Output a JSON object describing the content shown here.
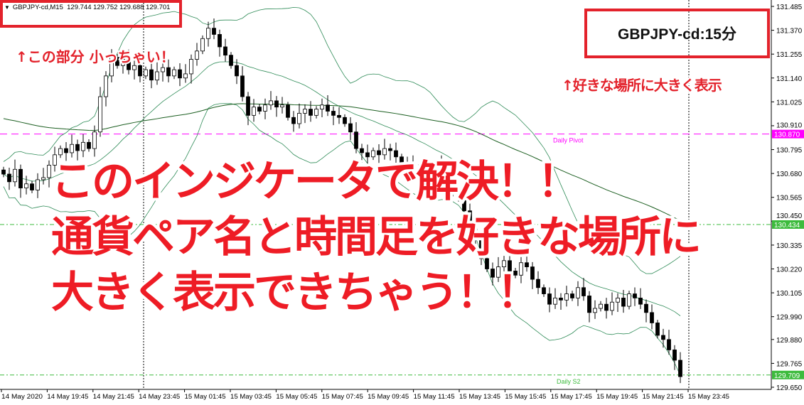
{
  "header": {
    "symbol": "GBPJPY-cd,M15",
    "ohlc": "129.744 129.752 129.688 129.701"
  },
  "symbol_label": "GBPJPY-cd:15分",
  "annotations": {
    "small_note": "↑この部分 小っちゃい！",
    "place_note": "↑好きな場所に大きく表示",
    "headline": [
      "このインジケータで解決！！",
      "通貨ペア名と時間足を好きな場所に",
      "大きく表示できちゃう！！"
    ]
  },
  "colors": {
    "accent_red": "#e3222b",
    "pivot": "#ff00ff",
    "support": "#3dbb3d",
    "band": "#2e8b57",
    "ma": "#1b5e20"
  },
  "chart_data": {
    "type": "candlestick",
    "title": "GBPJPY-cd,M15",
    "ylim": [
      129.65,
      131.485
    ],
    "y_ticks": [
      "131.485",
      "131.370",
      "131.255",
      "131.140",
      "131.025",
      "130.910",
      "130.795",
      "130.680",
      "130.565",
      "130.450",
      "130.335",
      "130.220",
      "130.105",
      "129.990",
      "129.880",
      "129.765",
      "129.650"
    ],
    "x_ticks": [
      "14 May 2020",
      "14 May 19:45",
      "14 May 21:45",
      "14 May 23:45",
      "15 May 01:45",
      "15 May 03:45",
      "15 May 05:45",
      "15 May 07:45",
      "15 May 09:45",
      "15 May 11:45",
      "15 May 13:45",
      "15 May 15:45",
      "15 May 17:45",
      "15 May 19:45",
      "15 May 21:45",
      "15 May 23:45"
    ],
    "closes": [
      130.677,
      130.64,
      130.7,
      130.61,
      130.63,
      130.6,
      130.65,
      130.66,
      130.72,
      130.77,
      130.8,
      130.78,
      130.82,
      130.79,
      130.83,
      130.8,
      130.88,
      131.05,
      131.15,
      131.24,
      131.2,
      131.23,
      131.18,
      131.2,
      131.15,
      131.18,
      131.13,
      131.17,
      131.19,
      131.15,
      131.18,
      131.14,
      131.16,
      131.23,
      131.27,
      131.33,
      131.38,
      131.35,
      131.29,
      131.25,
      131.2,
      131.15,
      131.05,
      130.96,
      131.0,
      130.98,
      131.01,
      131.03,
      131.0,
      131.01,
      130.95,
      130.92,
      130.97,
      130.99,
      130.96,
      130.99,
      131.01,
      130.98,
      130.96,
      130.95,
      130.92,
      130.88,
      130.8,
      130.78,
      130.76,
      130.79,
      130.77,
      130.8,
      130.79,
      130.76,
      130.73,
      130.72,
      130.7,
      130.69,
      130.71,
      130.68,
      130.7,
      130.72,
      130.66,
      130.6,
      130.56,
      130.5,
      130.43,
      130.36,
      130.27,
      130.22,
      130.18,
      130.23,
      130.26,
      130.21,
      130.19,
      130.25,
      130.23,
      130.17,
      130.13,
      130.1,
      130.05,
      130.08,
      130.07,
      130.1,
      130.08,
      130.13,
      130.09,
      130.01,
      130.03,
      130.05,
      130.02,
      130.06,
      130.08,
      130.04,
      130.1,
      130.08,
      130.05,
      130.01,
      129.96,
      129.9,
      129.88,
      129.83,
      129.78,
      129.701
    ],
    "levels": [
      {
        "name": "Daily Pivot",
        "value": 130.87,
        "label": "130.870",
        "color": "#ff00ff"
      },
      {
        "name": "",
        "value": 130.434,
        "label": "130.434",
        "color": "#3dbb3d"
      },
      {
        "name": "Daily S2",
        "value": 129.709,
        "label": "129.709",
        "color": "#3dbb3d"
      }
    ]
  }
}
